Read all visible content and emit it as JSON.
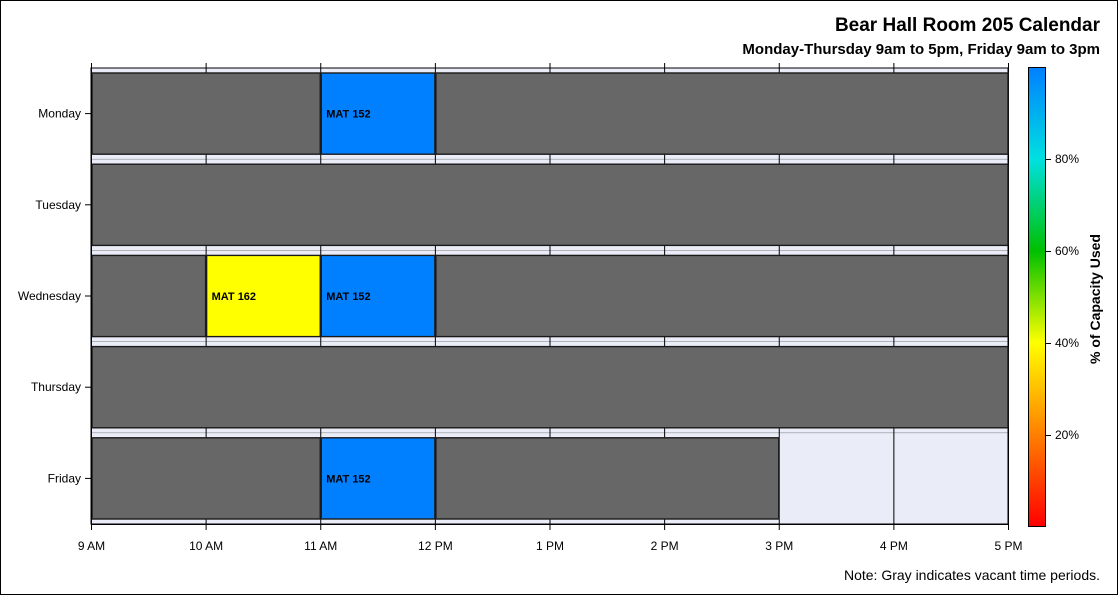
{
  "chart_data": {
    "type": "heatmap",
    "title": "Bear Hall Room 205 Calendar",
    "subtitle": "Monday-Thursday 9am to 5pm, Friday 9am to 3pm",
    "note": "Note: Gray indicates vacant time periods.",
    "x_ticks": [
      "9 AM",
      "10 AM",
      "11 AM",
      "12 PM",
      "1 PM",
      "2 PM",
      "3 PM",
      "4 PM",
      "5 PM"
    ],
    "x_range": [
      9,
      17
    ],
    "days": [
      "Monday",
      "Tuesday",
      "Wednesday",
      "Thursday",
      "Friday"
    ],
    "blocks": [
      {
        "day": "Monday",
        "start": 9,
        "end": 11,
        "label": "",
        "vacant": true
      },
      {
        "day": "Monday",
        "start": 11,
        "end": 12,
        "label": "MAT 152",
        "vacant": false,
        "capacity_pct": 100
      },
      {
        "day": "Monday",
        "start": 12,
        "end": 17,
        "label": "",
        "vacant": true
      },
      {
        "day": "Tuesday",
        "start": 9,
        "end": 17,
        "label": "",
        "vacant": true
      },
      {
        "day": "Wednesday",
        "start": 9,
        "end": 10,
        "label": "",
        "vacant": true
      },
      {
        "day": "Wednesday",
        "start": 10,
        "end": 11,
        "label": "MAT 162",
        "vacant": false,
        "capacity_pct": 45
      },
      {
        "day": "Wednesday",
        "start": 11,
        "end": 12,
        "label": "MAT 152",
        "vacant": false,
        "capacity_pct": 100
      },
      {
        "day": "Wednesday",
        "start": 12,
        "end": 17,
        "label": "",
        "vacant": true
      },
      {
        "day": "Thursday",
        "start": 9,
        "end": 17,
        "label": "",
        "vacant": true
      },
      {
        "day": "Friday",
        "start": 9,
        "end": 11,
        "label": "",
        "vacant": true
      },
      {
        "day": "Friday",
        "start": 11,
        "end": 12,
        "label": "MAT 152",
        "vacant": false,
        "capacity_pct": 100
      },
      {
        "day": "Friday",
        "start": 12,
        "end": 15,
        "label": "",
        "vacant": true
      }
    ],
    "colorbar": {
      "title": "% of Capacity Used",
      "range": [
        0,
        100
      ],
      "ticks": [
        {
          "value": 20,
          "label": "20%"
        },
        {
          "value": 40,
          "label": "40%"
        },
        {
          "value": 60,
          "label": "60%"
        },
        {
          "value": 80,
          "label": "80%"
        }
      ]
    },
    "grid": true,
    "colors": {
      "vacant": "#676767",
      "occupied_full": "#0080ff",
      "occupied_45": "#ffff00",
      "background": "#eaedf7"
    }
  }
}
